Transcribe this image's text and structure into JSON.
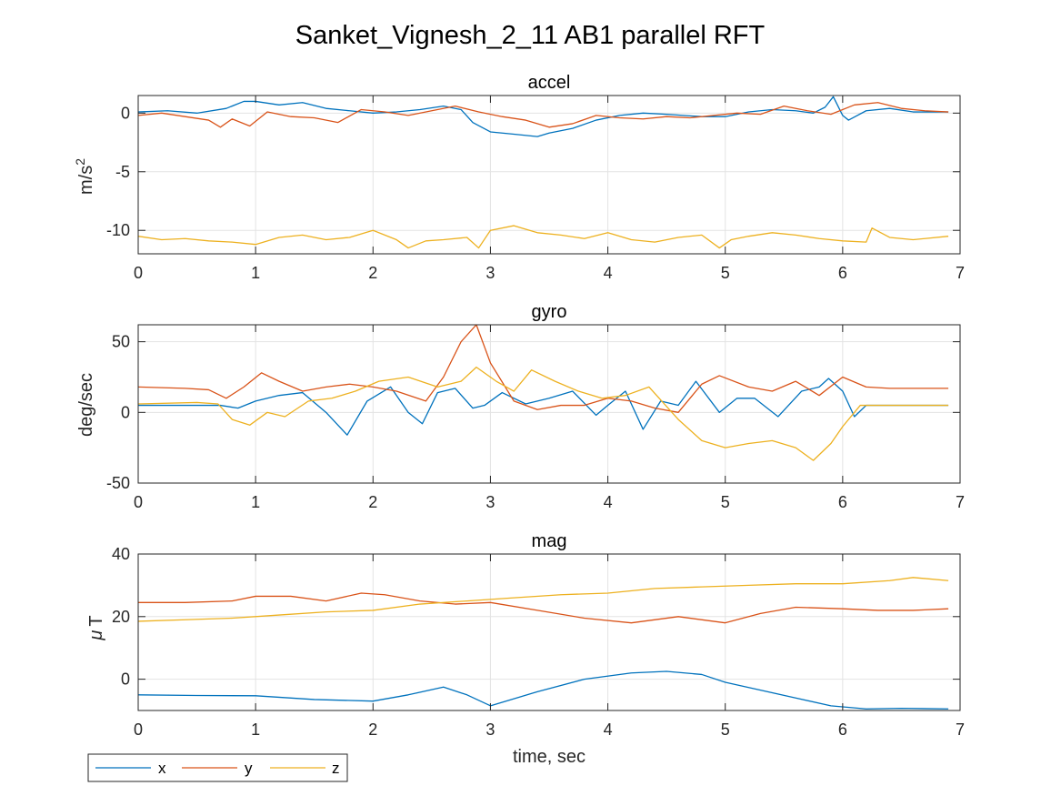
{
  "figure": {
    "title": "Sanket_Vignesh_2_11 AB1 parallel RFT",
    "xlabel": "time, sec"
  },
  "legend": {
    "placement": "bottom-left, outside plot area",
    "entries": [
      {
        "label": "x",
        "color": "#0072BD"
      },
      {
        "label": "y",
        "color": "#D95319"
      },
      {
        "label": "z",
        "color": "#EDB120"
      }
    ]
  },
  "chart_data": [
    {
      "type": "line",
      "title": "accel",
      "ylabel_main": "m/s",
      "ylabel_sup": "2",
      "xlim": [
        0,
        7
      ],
      "ylim": [
        -12,
        1.5
      ],
      "xticks": [
        0,
        1,
        2,
        3,
        4,
        5,
        6,
        7
      ],
      "yticks": [
        -10,
        -5,
        0
      ],
      "grid": true,
      "series": [
        {
          "name": "x",
          "color": "#0072BD",
          "x": [
            0,
            0.25,
            0.5,
            0.75,
            0.9,
            1.0,
            1.2,
            1.4,
            1.6,
            1.8,
            2.0,
            2.2,
            2.4,
            2.6,
            2.75,
            2.85,
            3.0,
            3.2,
            3.4,
            3.5,
            3.7,
            3.9,
            4.1,
            4.3,
            4.5,
            4.8,
            5.0,
            5.2,
            5.4,
            5.6,
            5.75,
            5.85,
            5.92,
            6.0,
            6.05,
            6.2,
            6.4,
            6.6,
            6.9
          ],
          "y": [
            0.1,
            0.2,
            0.0,
            0.4,
            1.0,
            1.0,
            0.7,
            0.9,
            0.4,
            0.2,
            0.0,
            0.1,
            0.3,
            0.6,
            0.3,
            -0.8,
            -1.6,
            -1.8,
            -2.0,
            -1.7,
            -1.3,
            -0.6,
            -0.2,
            0.0,
            -0.1,
            -0.3,
            -0.3,
            0.1,
            0.3,
            0.2,
            0.0,
            0.5,
            1.4,
            -0.2,
            -0.6,
            0.2,
            0.4,
            0.1,
            0.1
          ]
        },
        {
          "name": "y",
          "color": "#D95319",
          "x": [
            0,
            0.2,
            0.4,
            0.6,
            0.7,
            0.8,
            0.95,
            1.1,
            1.3,
            1.5,
            1.7,
            1.9,
            2.1,
            2.3,
            2.5,
            2.7,
            2.9,
            3.1,
            3.3,
            3.5,
            3.7,
            3.9,
            4.1,
            4.3,
            4.5,
            4.7,
            4.9,
            5.1,
            5.3,
            5.5,
            5.7,
            5.9,
            6.1,
            6.3,
            6.5,
            6.7,
            6.9
          ],
          "y": [
            -0.2,
            0.0,
            -0.3,
            -0.6,
            -1.2,
            -0.5,
            -1.1,
            0.1,
            -0.3,
            -0.4,
            -0.8,
            0.3,
            0.1,
            -0.2,
            0.2,
            0.6,
            0.1,
            -0.3,
            -0.6,
            -1.2,
            -0.9,
            -0.2,
            -0.4,
            -0.5,
            -0.3,
            -0.4,
            -0.2,
            0.0,
            -0.1,
            0.6,
            0.2,
            -0.1,
            0.7,
            0.9,
            0.4,
            0.2,
            0.1
          ]
        },
        {
          "name": "z",
          "color": "#EDB120",
          "x": [
            0,
            0.2,
            0.4,
            0.6,
            0.8,
            1.0,
            1.2,
            1.4,
            1.6,
            1.8,
            2.0,
            2.2,
            2.3,
            2.45,
            2.6,
            2.8,
            2.9,
            3.0,
            3.2,
            3.4,
            3.6,
            3.8,
            4.0,
            4.2,
            4.4,
            4.6,
            4.8,
            4.95,
            5.05,
            5.2,
            5.4,
            5.6,
            5.8,
            6.0,
            6.2,
            6.25,
            6.4,
            6.6,
            6.9
          ],
          "y": [
            -10.5,
            -10.8,
            -10.7,
            -10.9,
            -11.0,
            -11.2,
            -10.6,
            -10.4,
            -10.8,
            -10.6,
            -10.0,
            -10.8,
            -11.5,
            -10.9,
            -10.8,
            -10.6,
            -11.5,
            -10.0,
            -9.6,
            -10.2,
            -10.4,
            -10.7,
            -10.2,
            -10.8,
            -11.0,
            -10.6,
            -10.4,
            -11.5,
            -10.8,
            -10.5,
            -10.2,
            -10.4,
            -10.7,
            -10.9,
            -11.0,
            -9.8,
            -10.6,
            -10.8,
            -10.5
          ]
        }
      ]
    },
    {
      "type": "line",
      "title": "gyro",
      "ylabel_main": "deg/sec",
      "xlim": [
        0,
        7
      ],
      "ylim": [
        -50,
        62
      ],
      "xticks": [
        0,
        1,
        2,
        3,
        4,
        5,
        6,
        7
      ],
      "yticks": [
        -50,
        0,
        50
      ],
      "grid": true,
      "series": [
        {
          "name": "x",
          "color": "#0072BD",
          "x": [
            0,
            0.5,
            0.7,
            0.85,
            1.0,
            1.2,
            1.4,
            1.6,
            1.78,
            1.95,
            2.15,
            2.3,
            2.42,
            2.55,
            2.7,
            2.85,
            2.95,
            3.1,
            3.3,
            3.5,
            3.7,
            3.9,
            4.0,
            4.15,
            4.3,
            4.45,
            4.6,
            4.75,
            4.95,
            5.1,
            5.25,
            5.45,
            5.65,
            5.8,
            5.88,
            6.0,
            6.1,
            6.2,
            6.4,
            6.9
          ],
          "y": [
            5,
            5,
            5,
            3,
            8,
            12,
            14,
            0,
            -16,
            8,
            18,
            0,
            -8,
            14,
            17,
            3,
            5,
            14,
            6,
            10,
            15,
            -2,
            5,
            15,
            -12,
            8,
            5,
            22,
            0,
            10,
            10,
            -3,
            15,
            18,
            24,
            15,
            -3,
            5,
            5,
            5
          ]
        },
        {
          "name": "y",
          "color": "#D95319",
          "x": [
            0,
            0.4,
            0.6,
            0.75,
            0.9,
            1.05,
            1.2,
            1.4,
            1.6,
            1.8,
            2.0,
            2.2,
            2.45,
            2.6,
            2.75,
            2.88,
            3.0,
            3.2,
            3.4,
            3.6,
            3.8,
            4.0,
            4.2,
            4.4,
            4.6,
            4.8,
            4.95,
            5.2,
            5.4,
            5.6,
            5.8,
            6.0,
            6.2,
            6.4,
            6.9
          ],
          "y": [
            18,
            17,
            16,
            10,
            18,
            28,
            22,
            15,
            18,
            20,
            18,
            15,
            8,
            25,
            50,
            62,
            35,
            8,
            2,
            5,
            5,
            10,
            8,
            3,
            0,
            20,
            26,
            18,
            15,
            22,
            12,
            25,
            18,
            17,
            17
          ]
        },
        {
          "name": "z",
          "color": "#EDB120",
          "x": [
            0,
            0.5,
            0.68,
            0.8,
            0.95,
            1.1,
            1.25,
            1.45,
            1.65,
            1.85,
            2.05,
            2.3,
            2.55,
            2.75,
            2.88,
            3.05,
            3.2,
            3.35,
            3.55,
            3.75,
            3.95,
            4.15,
            4.35,
            4.6,
            4.8,
            5.0,
            5.2,
            5.4,
            5.6,
            5.75,
            5.9,
            6.0,
            6.15,
            6.3,
            6.9
          ],
          "y": [
            6,
            7,
            6,
            -5,
            -9,
            0,
            -3,
            8,
            10,
            15,
            22,
            25,
            18,
            22,
            32,
            22,
            15,
            30,
            22,
            15,
            10,
            12,
            18,
            -5,
            -20,
            -25,
            -22,
            -20,
            -25,
            -34,
            -22,
            -10,
            5,
            5,
            5
          ]
        }
      ]
    },
    {
      "type": "line",
      "title": "mag",
      "ylabel_greek": "μ",
      "ylabel_main": "T",
      "xlim": [
        0,
        7
      ],
      "ylim": [
        -10,
        40
      ],
      "xticks": [
        0,
        1,
        2,
        3,
        4,
        5,
        6,
        7
      ],
      "yticks": [
        0,
        20,
        40
      ],
      "grid": true,
      "series": [
        {
          "name": "x",
          "color": "#0072BD",
          "x": [
            0,
            0.5,
            1.0,
            1.5,
            2.0,
            2.3,
            2.6,
            2.8,
            3.0,
            3.4,
            3.8,
            4.2,
            4.5,
            4.8,
            5.0,
            5.3,
            5.6,
            5.9,
            6.2,
            6.5,
            6.9
          ],
          "y": [
            -5,
            -5.2,
            -5.3,
            -6.5,
            -7,
            -5,
            -2.5,
            -5,
            -8.5,
            -4,
            0,
            2,
            2.5,
            1.5,
            -1,
            -3.5,
            -6,
            -8.5,
            -9.5,
            -9.3,
            -9.5
          ]
        },
        {
          "name": "y",
          "color": "#D95319",
          "x": [
            0,
            0.4,
            0.8,
            1.0,
            1.3,
            1.6,
            1.9,
            2.1,
            2.4,
            2.7,
            3.0,
            3.4,
            3.8,
            4.2,
            4.6,
            5.0,
            5.3,
            5.6,
            6.0,
            6.3,
            6.6,
            6.9
          ],
          "y": [
            24.5,
            24.5,
            25,
            26.5,
            26.5,
            25,
            27.5,
            27,
            25,
            24,
            24.5,
            22,
            19.5,
            18,
            20,
            18,
            21,
            23,
            22.5,
            22,
            22,
            22.5
          ]
        },
        {
          "name": "z",
          "color": "#EDB120",
          "x": [
            0,
            0.4,
            0.8,
            1.2,
            1.6,
            2.0,
            2.4,
            2.8,
            3.2,
            3.6,
            4.0,
            4.4,
            4.8,
            5.2,
            5.6,
            6.0,
            6.4,
            6.6,
            6.9
          ],
          "y": [
            18.5,
            19,
            19.5,
            20.5,
            21.5,
            22,
            24,
            25,
            26,
            27,
            27.5,
            29,
            29.5,
            30,
            30.5,
            30.5,
            31.5,
            32.5,
            31.5
          ]
        }
      ]
    }
  ]
}
